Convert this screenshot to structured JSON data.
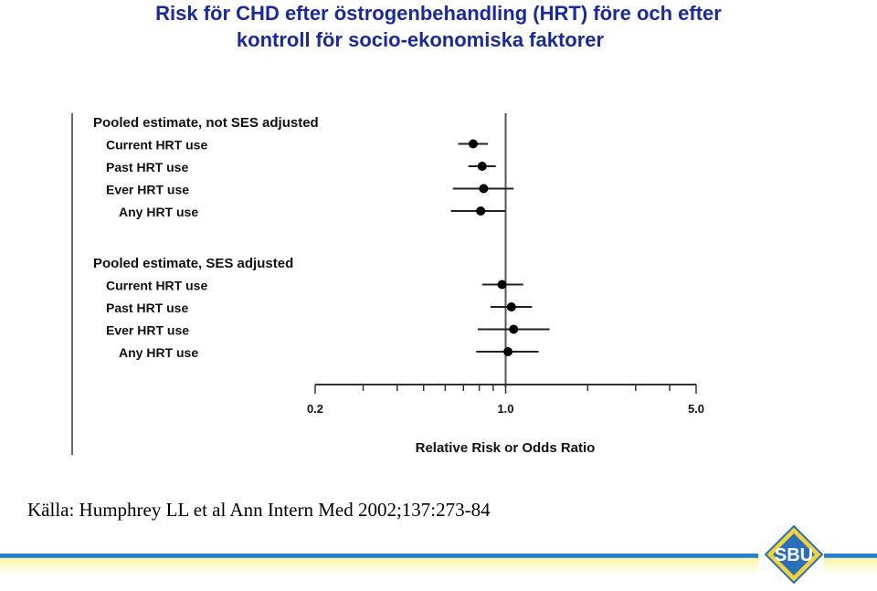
{
  "slide": {
    "title_line1": "Risk för CHD efter östrogenbehandling (HRT) före och efter",
    "title_line2": "kontroll för socio-ekonomiska faktorer",
    "source": "Källa: Humphrey LL et al Ann Intern Med 2002;137:273-84",
    "logo_text": "SBU",
    "title_color": "#1a2a9c",
    "band_color": "#f6f08a"
  },
  "chart_data": {
    "type": "forest",
    "xlabel": "Relative Risk or Odds Ratio",
    "xscale": "log",
    "xlim": [
      0.2,
      5.0
    ],
    "xticks": [
      {
        "value": 0.2,
        "label": "0.2"
      },
      {
        "value": 1.0,
        "label": "1.0"
      },
      {
        "value": 5.0,
        "label": "5.0"
      }
    ],
    "reference_line": 1.0,
    "grid": false,
    "groups": [
      {
        "heading": "Pooled estimate, not SES adjusted",
        "rows": [
          {
            "label": "Current HRT use",
            "estimate": 0.76,
            "ci_low": 0.67,
            "ci_high": 0.86
          },
          {
            "label": "Past HRT use",
            "estimate": 0.82,
            "ci_low": 0.73,
            "ci_high": 0.92
          },
          {
            "label": "Ever HRT use",
            "estimate": 0.83,
            "ci_low": 0.64,
            "ci_high": 1.07
          },
          {
            "label": "Any HRT use",
            "estimate": 0.81,
            "ci_low": 0.63,
            "ci_high": 1.0
          }
        ]
      },
      {
        "heading": "Pooled estimate, SES adjusted",
        "rows": [
          {
            "label": "Current HRT use",
            "estimate": 0.97,
            "ci_low": 0.82,
            "ci_high": 1.16
          },
          {
            "label": "Past HRT use",
            "estimate": 1.05,
            "ci_low": 0.88,
            "ci_high": 1.25
          },
          {
            "label": "Ever HRT use",
            "estimate": 1.07,
            "ci_low": 0.79,
            "ci_high": 1.45
          },
          {
            "label": "Any HRT use",
            "estimate": 1.02,
            "ci_low": 0.78,
            "ci_high": 1.32
          }
        ]
      }
    ]
  }
}
